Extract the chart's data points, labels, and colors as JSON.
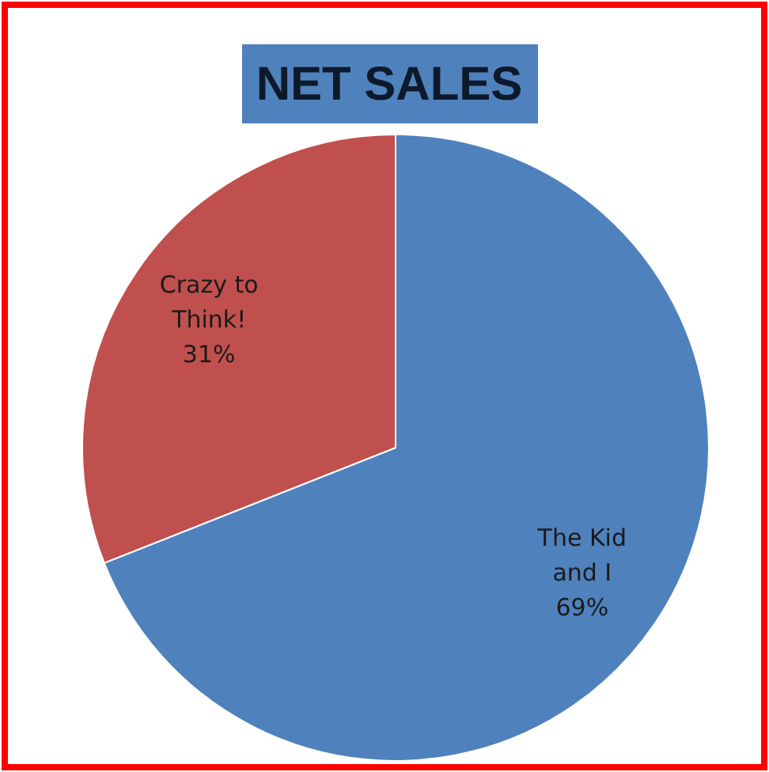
{
  "chart_data": {
    "type": "pie",
    "title": "NET SALES",
    "categories": [
      "The Kid and I",
      "Crazy to Think!"
    ],
    "values": [
      69,
      31
    ],
    "colors": [
      "#4f81bd",
      "#c0504d"
    ],
    "value_labels": [
      "69%",
      "31%"
    ]
  }
}
